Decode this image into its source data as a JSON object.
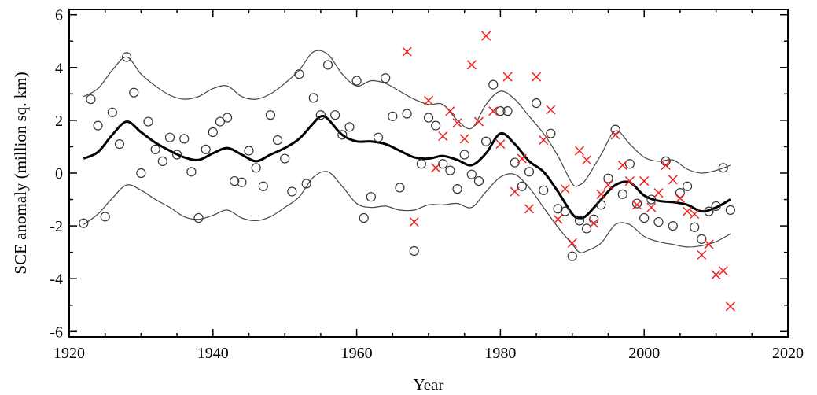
{
  "chart_data": {
    "type": "scatter",
    "xlabel": "Year",
    "ylabel": "SCE anomaly (million sq. km)",
    "xlim": [
      1920,
      2020
    ],
    "ylim": [
      -6.2,
      6.2
    ],
    "xticks": [
      1920,
      1940,
      1960,
      1980,
      2000,
      2020
    ],
    "yticks": [
      -6,
      -4,
      -2,
      0,
      2,
      4,
      6
    ],
    "xtick_labels": [
      "1920",
      "1940",
      "1960",
      "1980",
      "2000",
      "2020"
    ],
    "ytick_labels": [
      "-6",
      "-4",
      "-2",
      "0",
      "2",
      "4",
      "6"
    ],
    "grid": false,
    "legend": "none",
    "series": [
      {
        "marker": "circle",
        "color": "#333333",
        "x": [
          1922,
          1923,
          1924,
          1925,
          1926,
          1927,
          1928,
          1929,
          1930,
          1931,
          1932,
          1933,
          1934,
          1935,
          1936,
          1937,
          1938,
          1939,
          1940,
          1941,
          1942,
          1943,
          1944,
          1945,
          1946,
          1947,
          1948,
          1949,
          1950,
          1951,
          1952,
          1953,
          1954,
          1955,
          1956,
          1957,
          1958,
          1959,
          1960,
          1961,
          1962,
          1963,
          1964,
          1965,
          1966,
          1967,
          1968,
          1969,
          1970,
          1971,
          1972,
          1973,
          1974,
          1975,
          1976,
          1977,
          1978,
          1979,
          1980,
          1981,
          1982,
          1983,
          1984,
          1985,
          1986,
          1987,
          1988,
          1989,
          1990,
          1991,
          1992,
          1993,
          1994,
          1995,
          1996,
          1997,
          1998,
          1999,
          2000,
          2001,
          2002,
          2003,
          2004,
          2005,
          2006,
          2007,
          2008,
          2009,
          2010,
          2011,
          2012
        ],
        "y": [
          -1.9,
          2.8,
          1.8,
          -1.65,
          2.3,
          1.1,
          4.4,
          3.05,
          0.0,
          1.95,
          0.9,
          0.45,
          1.35,
          0.7,
          1.3,
          0.05,
          -1.7,
          0.9,
          1.55,
          1.95,
          2.1,
          -0.3,
          -0.35,
          0.85,
          0.2,
          -0.5,
          2.2,
          1.25,
          0.55,
          -0.7,
          3.75,
          -0.4,
          2.85,
          2.2,
          4.1,
          2.2,
          1.45,
          1.75,
          3.5,
          -1.7,
          -0.9,
          1.35,
          3.6,
          2.15,
          -0.55,
          2.25,
          -2.95,
          0.35,
          2.1,
          1.8,
          0.35,
          0.1,
          -0.6,
          0.7,
          -0.05,
          -0.3,
          1.2,
          3.35,
          2.35,
          2.35,
          0.4,
          -0.5,
          0.05,
          2.65,
          -0.65,
          1.5,
          -1.35,
          -1.45,
          -3.15,
          -1.8,
          -2.1,
          -1.75,
          -1.2,
          -0.2,
          1.65,
          -0.8,
          0.35,
          -1.15,
          -1.7,
          -1.0,
          -1.85,
          0.45,
          -2.0,
          -0.75,
          -0.5,
          -2.05,
          -2.5,
          -1.45,
          -1.25,
          0.2,
          -1.4
        ]
      },
      {
        "marker": "x",
        "color": "#ee2222",
        "x": [
          1967,
          1968,
          1970,
          1971,
          1972,
          1973,
          1974,
          1975,
          1976,
          1977,
          1978,
          1979,
          1980,
          1981,
          1982,
          1983,
          1984,
          1985,
          1986,
          1987,
          1988,
          1989,
          1990,
          1991,
          1992,
          1993,
          1994,
          1995,
          1996,
          1997,
          1998,
          1999,
          2000,
          2001,
          2002,
          2003,
          2004,
          2005,
          2006,
          2007,
          2008,
          2009,
          2010,
          2011,
          2012
        ],
        "y": [
          4.6,
          -1.85,
          2.75,
          0.2,
          1.4,
          2.35,
          1.9,
          1.3,
          4.1,
          1.95,
          5.2,
          2.35,
          1.1,
          3.65,
          -0.7,
          0.55,
          -1.35,
          3.65,
          1.25,
          2.4,
          -1.75,
          -0.6,
          -2.65,
          0.85,
          0.5,
          -1.9,
          -0.8,
          -0.45,
          1.45,
          0.3,
          -0.3,
          -1.2,
          -0.3,
          -1.3,
          -0.75,
          0.3,
          -0.25,
          -0.95,
          -1.45,
          -1.55,
          -3.1,
          -2.7,
          -3.85,
          -3.7,
          -5.05
        ]
      },
      {
        "name": "",
        "marker": "none",
        "color": "#000000",
        "line_style": "thick",
        "x": [
          1922,
          1924,
          1926,
          1928,
          1930,
          1932,
          1934,
          1936,
          1938,
          1940,
          1942,
          1944,
          1946,
          1948,
          1950,
          1952,
          1954,
          1955,
          1956,
          1958,
          1960,
          1962,
          1964,
          1966,
          1968,
          1970,
          1972,
          1974,
          1976,
          1978,
          1980,
          1982,
          1984,
          1986,
          1988,
          1990,
          1991,
          1992,
          1994,
          1996,
          1998,
          2000,
          2002,
          2004,
          2006,
          2008,
          2010,
          2012
        ],
        "y": [
          0.55,
          0.8,
          1.45,
          1.95,
          1.55,
          1.15,
          0.85,
          0.6,
          0.5,
          0.75,
          0.95,
          0.7,
          0.45,
          0.7,
          0.95,
          1.3,
          1.9,
          2.15,
          2.05,
          1.45,
          1.2,
          1.2,
          1.1,
          0.85,
          0.6,
          0.55,
          0.65,
          0.5,
          0.3,
          0.75,
          1.5,
          1.1,
          0.45,
          0.05,
          -0.7,
          -1.55,
          -1.7,
          -1.6,
          -1.0,
          -0.45,
          -0.35,
          -0.85,
          -1.05,
          -1.1,
          -1.2,
          -1.45,
          -1.3,
          -1.0
        ]
      },
      {
        "name": "",
        "marker": "none",
        "color": "#444444",
        "line_style": "thin",
        "x": [
          1922,
          1924,
          1926,
          1928,
          1930,
          1932,
          1934,
          1936,
          1938,
          1940,
          1942,
          1944,
          1946,
          1948,
          1950,
          1952,
          1954,
          1956,
          1958,
          1960,
          1962,
          1964,
          1966,
          1968,
          1970,
          1972,
          1974,
          1976,
          1978,
          1980,
          1982,
          1984,
          1986,
          1988,
          1990,
          1991,
          1992,
          1994,
          1996,
          1998,
          2000,
          2002,
          2004,
          2006,
          2008,
          2010,
          2012
        ],
        "y": [
          2.9,
          3.2,
          3.9,
          4.4,
          3.75,
          3.3,
          2.95,
          2.8,
          2.9,
          3.2,
          3.3,
          2.9,
          2.8,
          3.0,
          3.4,
          3.9,
          4.6,
          4.5,
          3.75,
          3.3,
          3.5,
          3.4,
          3.1,
          2.8,
          2.6,
          2.6,
          2.0,
          1.7,
          2.6,
          3.1,
          2.8,
          2.15,
          1.5,
          0.65,
          -0.4,
          -0.45,
          -0.2,
          0.7,
          1.6,
          1.1,
          0.6,
          0.45,
          0.5,
          0.15,
          0.0,
          0.1,
          0.3
        ]
      },
      {
        "name": "",
        "marker": "none",
        "color": "#444444",
        "line_style": "thin",
        "x": [
          1922,
          1924,
          1926,
          1928,
          1930,
          1932,
          1934,
          1936,
          1938,
          1940,
          1942,
          1944,
          1946,
          1948,
          1950,
          1952,
          1954,
          1956,
          1958,
          1960,
          1962,
          1964,
          1966,
          1968,
          1970,
          1972,
          1974,
          1976,
          1978,
          1980,
          1982,
          1984,
          1986,
          1988,
          1990,
          1991,
          1992,
          1994,
          1996,
          1998,
          2000,
          2002,
          2004,
          2006,
          2008,
          2010,
          2012
        ],
        "y": [
          -1.95,
          -1.55,
          -0.95,
          -0.45,
          -0.65,
          -1.0,
          -1.3,
          -1.65,
          -1.75,
          -1.6,
          -1.4,
          -1.7,
          -1.8,
          -1.65,
          -1.3,
          -0.9,
          -0.15,
          0.05,
          -0.5,
          -1.15,
          -1.3,
          -1.25,
          -1.4,
          -1.4,
          -1.2,
          -1.2,
          -1.15,
          -1.3,
          -0.7,
          -0.15,
          -0.05,
          -0.55,
          -1.3,
          -2.05,
          -2.7,
          -3.0,
          -2.95,
          -2.65,
          -1.95,
          -1.95,
          -2.4,
          -2.6,
          -2.7,
          -2.8,
          -2.75,
          -2.6,
          -2.3
        ]
      }
    ]
  }
}
